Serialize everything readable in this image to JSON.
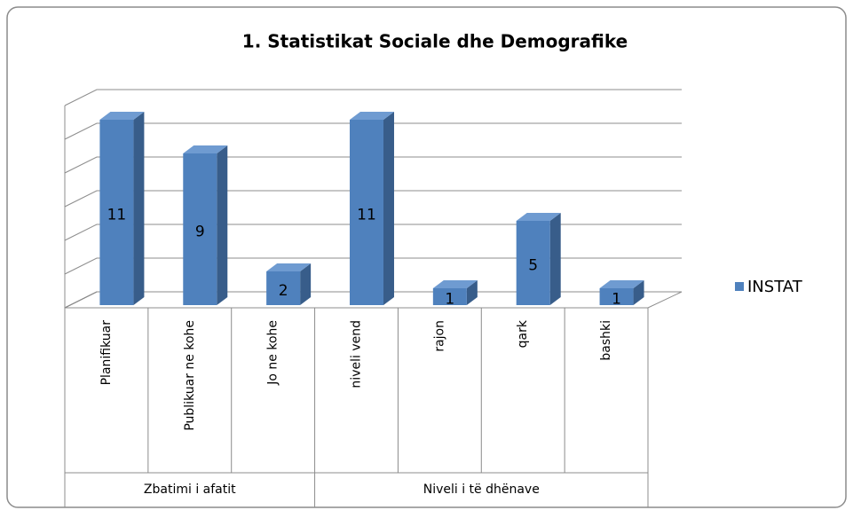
{
  "chart_data": {
    "type": "bar3d",
    "title": "1. Statistikat Sociale dhe Demografike",
    "groups": [
      {
        "name": "Zbatimi i afatit",
        "categories": [
          "Planifikuar",
          "Publikuar ne kohe",
          "Jo ne kohe"
        ]
      },
      {
        "name": "Niveli i të dhënave",
        "categories": [
          "niveli vend",
          "rajon",
          "qark",
          "bashki"
        ]
      }
    ],
    "series": [
      {
        "name": "INSTAT",
        "color": "#4f81bd",
        "values": [
          11,
          9,
          2,
          11,
          1,
          5,
          1
        ]
      }
    ],
    "ylim": [
      0,
      12
    ],
    "yticks": [
      0,
      2,
      4,
      6,
      8,
      10,
      12
    ],
    "grid": true,
    "legend": "right"
  }
}
